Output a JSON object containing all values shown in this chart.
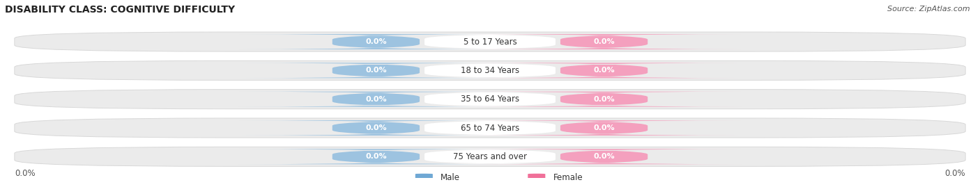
{
  "title": "DISABILITY CLASS: COGNITIVE DIFFICULTY",
  "source": "Source: ZipAtlas.com",
  "categories": [
    "5 to 17 Years",
    "18 to 34 Years",
    "35 to 64 Years",
    "65 to 74 Years",
    "75 Years and over"
  ],
  "male_values": [
    0.0,
    0.0,
    0.0,
    0.0,
    0.0
  ],
  "female_values": [
    0.0,
    0.0,
    0.0,
    0.0,
    0.0
  ],
  "male_color": "#9dc3e0",
  "female_color": "#f4a0be",
  "male_label": "Male",
  "female_label": "Female",
  "male_legend_color": "#6fa8d4",
  "female_legend_color": "#f07099",
  "bar_bg_color": "#ebebeb",
  "bar_border_color": "#d8d8d8",
  "center_label_bg": "#ffffff",
  "title_fontsize": 10,
  "label_fontsize": 8.5,
  "value_fontsize": 8,
  "tick_fontsize": 8.5,
  "source_fontsize": 8
}
